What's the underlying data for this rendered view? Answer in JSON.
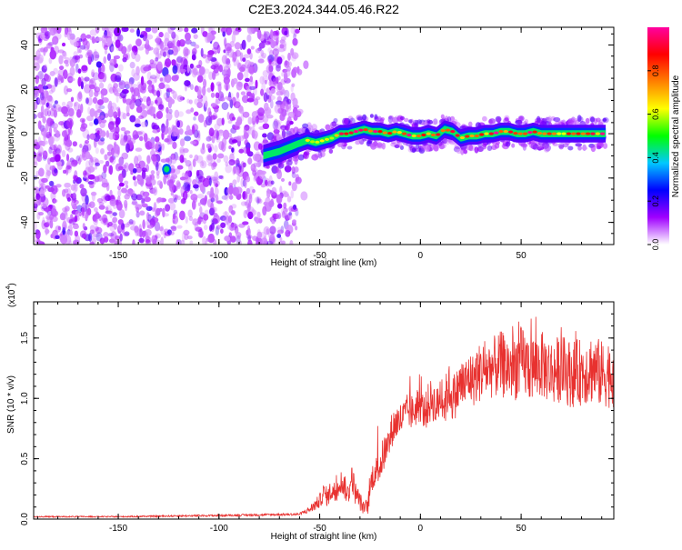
{
  "title": "C2E3.2024.344.05.46.R22",
  "chart_data": [
    {
      "type": "heatmap",
      "title": "C2E3.2024.344.05.46.R22",
      "xlabel": "Height of straight line (km)",
      "ylabel": "Frequency (Hz)",
      "xlim": [
        -192,
        96
      ],
      "ylim": [
        -50,
        48
      ],
      "x_ticks": [
        -150,
        -100,
        -50,
        0,
        50
      ],
      "y_ticks": [
        -40,
        -20,
        0,
        20,
        40
      ],
      "noise_region_x": [
        -192,
        -62
      ],
      "isolated_peak": {
        "x": -126,
        "y": -16
      },
      "signal_trace": {
        "x": [
          -78,
          -70,
          -62,
          -56,
          -52,
          -48,
          -44,
          -40,
          -36,
          -32,
          -28,
          -24,
          -20,
          -16,
          -12,
          -8,
          -4,
          0,
          4,
          8,
          12,
          16,
          20,
          24,
          28,
          32,
          36,
          40,
          44,
          48,
          52,
          56,
          60,
          64,
          68,
          72,
          76,
          80,
          84,
          88,
          92
        ],
        "y": [
          -10,
          -8,
          -5,
          -3,
          -4,
          -3,
          -2,
          0,
          0,
          1,
          2,
          1,
          1,
          0,
          1,
          0,
          -1,
          -1,
          0,
          -1,
          2,
          1,
          -2,
          -1,
          -1,
          0,
          0,
          1,
          1,
          0,
          0,
          1,
          0,
          0,
          0,
          0,
          0,
          0,
          0,
          0,
          0
        ]
      },
      "colorbar": {
        "label": "Normalized spectral amplitude",
        "range": [
          0,
          1
        ],
        "ticks": [
          0.0,
          0.2,
          0.4,
          0.6,
          0.8
        ],
        "tick_labels": [
          "0.0",
          "0.2",
          "0.4",
          "0.6",
          "0.8"
        ],
        "colors": [
          "#ffffff",
          "#a000ff",
          "#0000ff",
          "#00c8ff",
          "#00ff00",
          "#ffff00",
          "#ff8000",
          "#ff0000",
          "#ff00a0"
        ]
      },
      "colormap_note": "rainbow"
    },
    {
      "type": "line",
      "xlabel": "Height of straight line (km)",
      "ylabel": "SNR (10 * v/v)",
      "y_multiplier_label": "(x10",
      "y_multiplier_exp": "4",
      "xlim": [
        -192,
        96
      ],
      "ylim": [
        0,
        1.8
      ],
      "x_ticks": [
        -150,
        -100,
        -50,
        0,
        50
      ],
      "y_ticks": [
        0.0,
        0.5,
        1.0,
        1.5
      ],
      "y_tick_labels": [
        "0.0",
        "0.5",
        "1.0",
        "1.5"
      ],
      "series": [
        {
          "color": "#e8312f",
          "x": [
            -192,
            -150,
            -100,
            -60,
            -55,
            -52,
            -50,
            -48,
            -46,
            -44,
            -42,
            -40,
            -38,
            -36,
            -34,
            -32,
            -30,
            -28,
            -26,
            -24,
            -22,
            -20,
            -18,
            -16,
            -14,
            -12,
            -10,
            -8,
            -6,
            -4,
            -2,
            0,
            2,
            4,
            6,
            8,
            10,
            12,
            14,
            16,
            18,
            20,
            22,
            24,
            26,
            28,
            30,
            35,
            40,
            45,
            50,
            55,
            60,
            65,
            70,
            75,
            80,
            85,
            90,
            96
          ],
          "y": [
            0.02,
            0.02,
            0.03,
            0.04,
            0.08,
            0.12,
            0.15,
            0.22,
            0.18,
            0.25,
            0.2,
            0.32,
            0.28,
            0.2,
            0.35,
            0.2,
            0.15,
            0.08,
            0.12,
            0.35,
            0.4,
            0.45,
            0.55,
            0.6,
            0.75,
            0.8,
            0.82,
            0.85,
            0.9,
            0.88,
            0.92,
            0.95,
            0.88,
            0.95,
            1.0,
            0.9,
            1.05,
            0.95,
            1.1,
            1.0,
            1.05,
            1.12,
            1.1,
            1.18,
            1.15,
            1.2,
            1.22,
            1.25,
            1.28,
            1.25,
            1.3,
            1.25,
            1.28,
            1.22,
            1.25,
            1.2,
            1.22,
            1.25,
            1.2,
            1.22
          ],
          "noise_amplitude": [
            0.005,
            0.005,
            0.008,
            0.01,
            0.03,
            0.05,
            0.06,
            0.08,
            0.08,
            0.1,
            0.1,
            0.1,
            0.1,
            0.1,
            0.12,
            0.1,
            0.08,
            0.05,
            0.08,
            0.12,
            0.12,
            0.15,
            0.15,
            0.15,
            0.15,
            0.15,
            0.15,
            0.15,
            0.15,
            0.15,
            0.15,
            0.15,
            0.15,
            0.18,
            0.18,
            0.18,
            0.2,
            0.2,
            0.2,
            0.2,
            0.2,
            0.22,
            0.22,
            0.22,
            0.22,
            0.25,
            0.25,
            0.25,
            0.28,
            0.28,
            0.3,
            0.28,
            0.28,
            0.28,
            0.28,
            0.28,
            0.28,
            0.3,
            0.28,
            0.3
          ]
        }
      ]
    }
  ]
}
